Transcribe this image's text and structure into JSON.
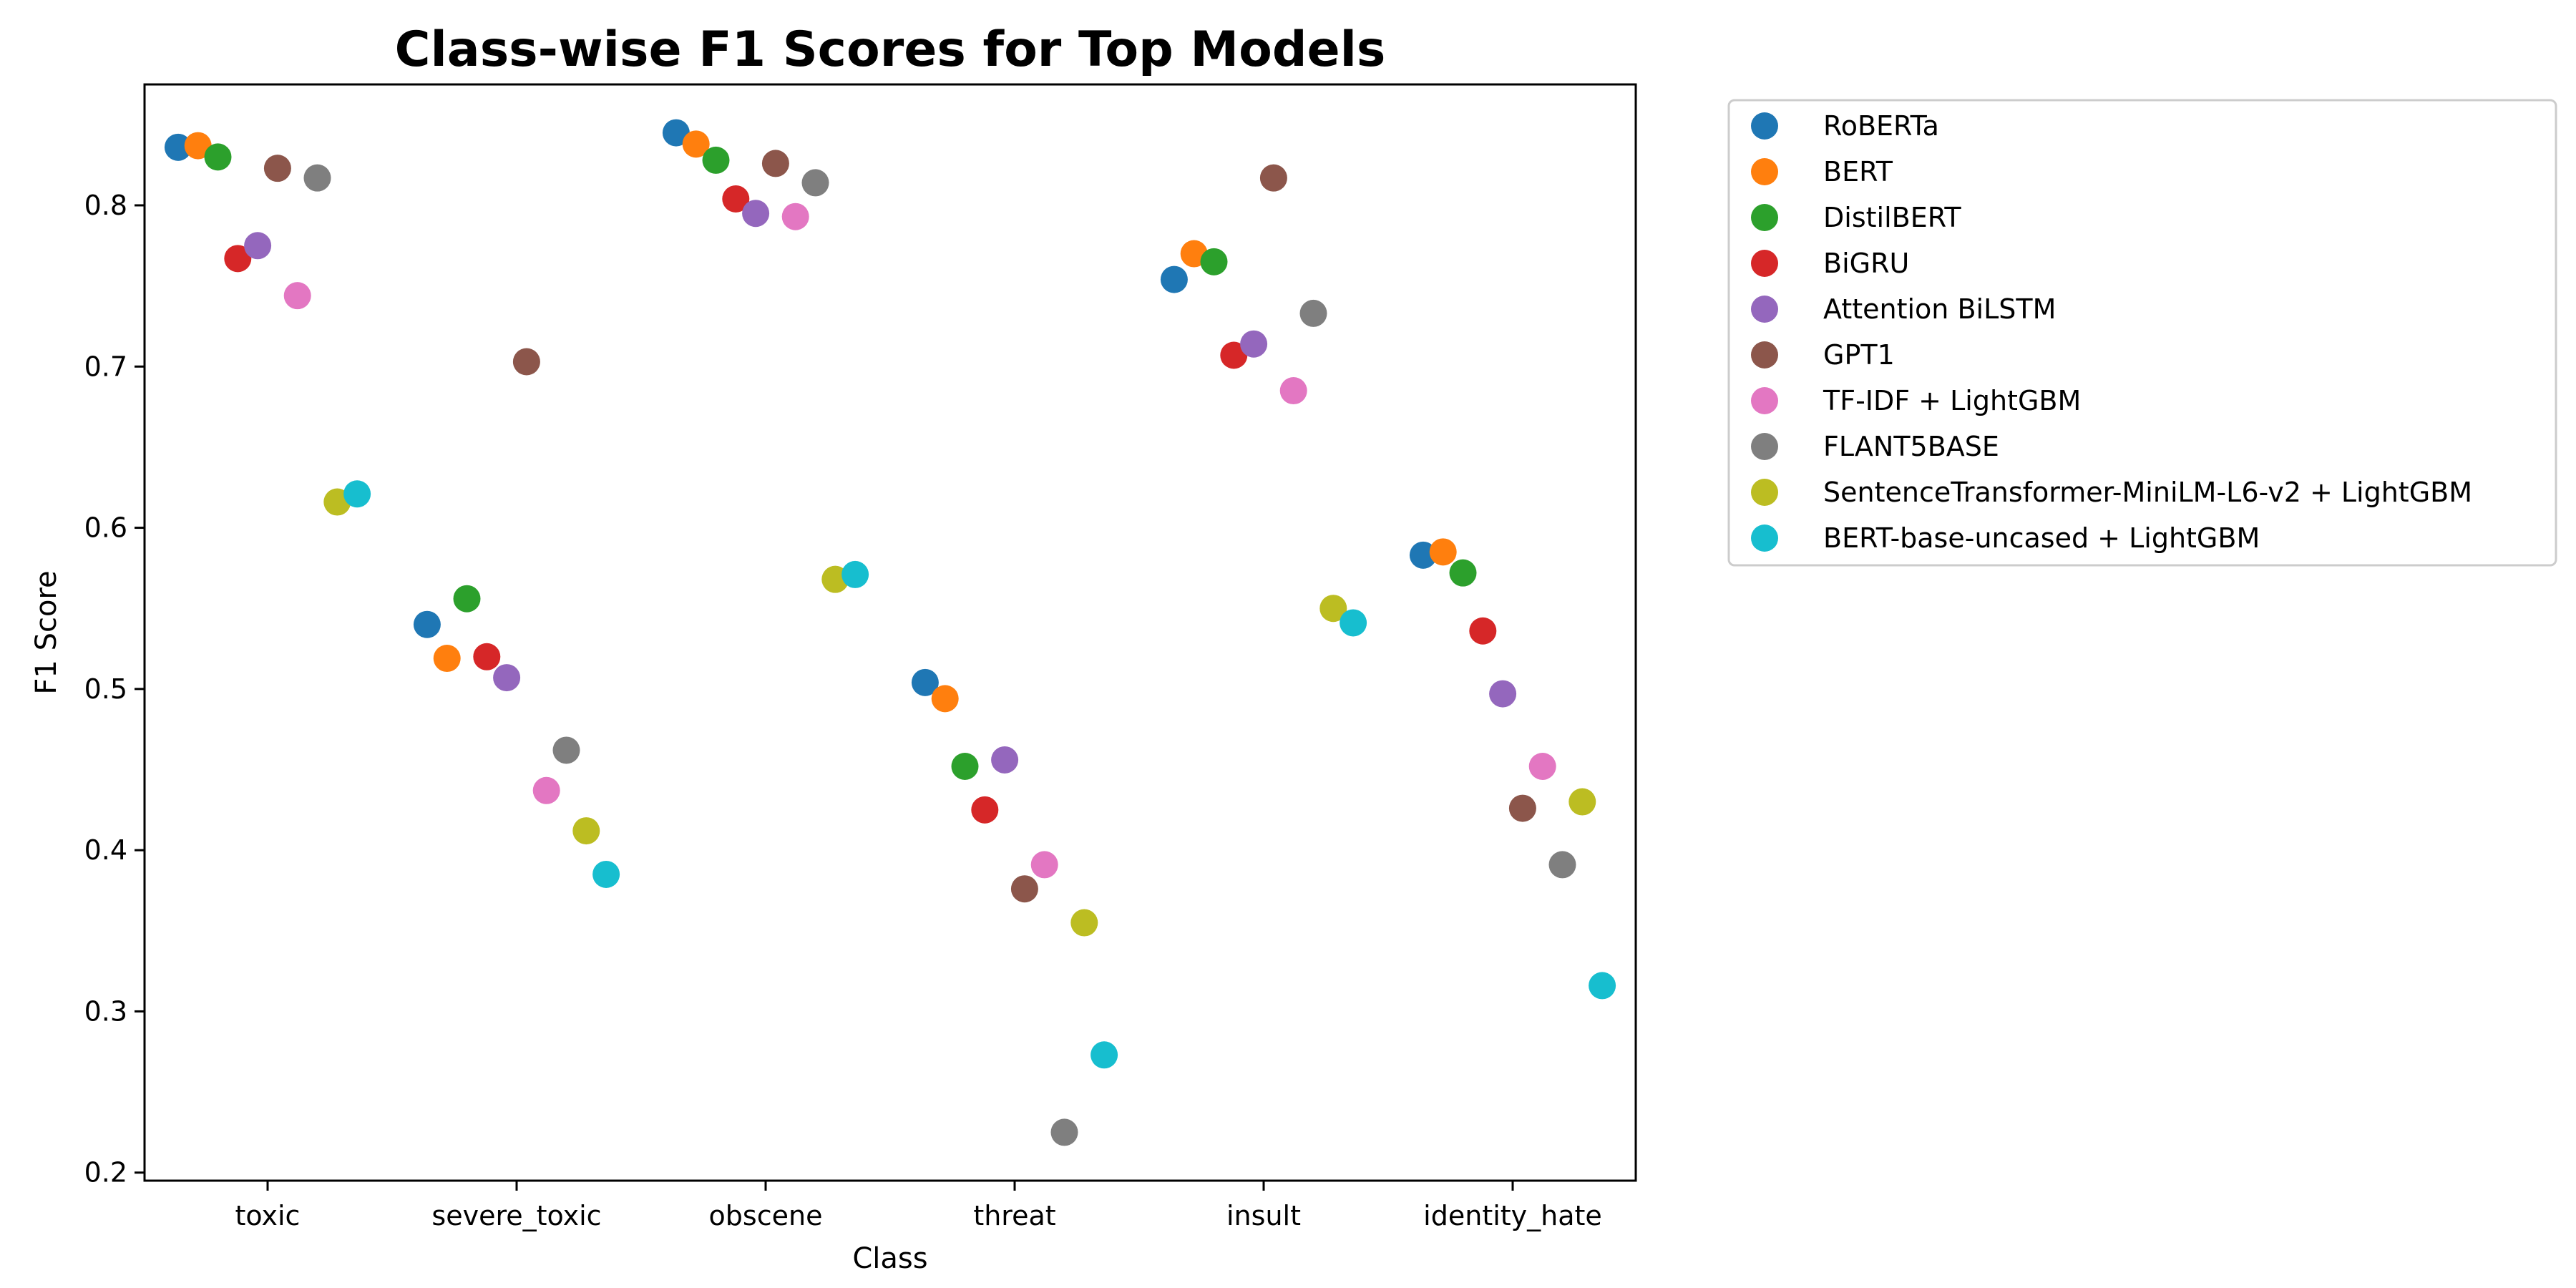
{
  "chart_data": {
    "type": "scatter",
    "title": "Class-wise F1 Scores for Top Models",
    "xlabel": "Class",
    "ylabel": "F1 Score",
    "categories": [
      "toxic",
      "severe_toxic",
      "obscene",
      "threat",
      "insult",
      "identity_hate"
    ],
    "ylim": [
      0.195,
      0.875
    ],
    "yticks": [
      "0.2",
      "0.3",
      "0.4",
      "0.5",
      "0.6",
      "0.7",
      "0.8"
    ],
    "grid": false,
    "legend_position": "outside-top-right",
    "series": [
      {
        "name": "RoBERTa",
        "color": "#1f77b4",
        "values": [
          0.836,
          0.54,
          0.845,
          0.504,
          0.754,
          0.583
        ]
      },
      {
        "name": "BERT",
        "color": "#ff7f0e",
        "values": [
          0.837,
          0.519,
          0.838,
          0.494,
          0.77,
          0.585
        ]
      },
      {
        "name": "DistilBERT",
        "color": "#2ca02c",
        "values": [
          0.83,
          0.556,
          0.828,
          0.452,
          0.765,
          0.572
        ]
      },
      {
        "name": "BiGRU",
        "color": "#d62728",
        "values": [
          0.767,
          0.52,
          0.804,
          0.425,
          0.707,
          0.536
        ]
      },
      {
        "name": "Attention BiLSTM",
        "color": "#9467bd",
        "values": [
          0.775,
          0.507,
          0.795,
          0.456,
          0.714,
          0.497
        ]
      },
      {
        "name": "GPT1",
        "color": "#8c564b",
        "values": [
          0.823,
          0.703,
          0.826,
          0.376,
          0.817,
          0.426
        ]
      },
      {
        "name": "TF-IDF + LightGBM",
        "color": "#e377c2",
        "values": [
          0.744,
          0.437,
          0.793,
          0.391,
          0.685,
          0.452
        ]
      },
      {
        "name": "FLANT5BASE",
        "color": "#7f7f7f",
        "values": [
          0.817,
          0.462,
          0.814,
          0.225,
          0.733,
          0.391
        ]
      },
      {
        "name": "SentenceTransformer-MiniLM-L6-v2 + LightGBM",
        "color": "#bcbd22",
        "values": [
          0.616,
          0.412,
          0.568,
          0.355,
          0.55,
          0.43
        ]
      },
      {
        "name": "BERT-base-uncased + LightGBM",
        "color": "#17becf",
        "values": [
          0.621,
          0.385,
          0.571,
          0.273,
          0.541,
          0.316
        ]
      }
    ]
  }
}
